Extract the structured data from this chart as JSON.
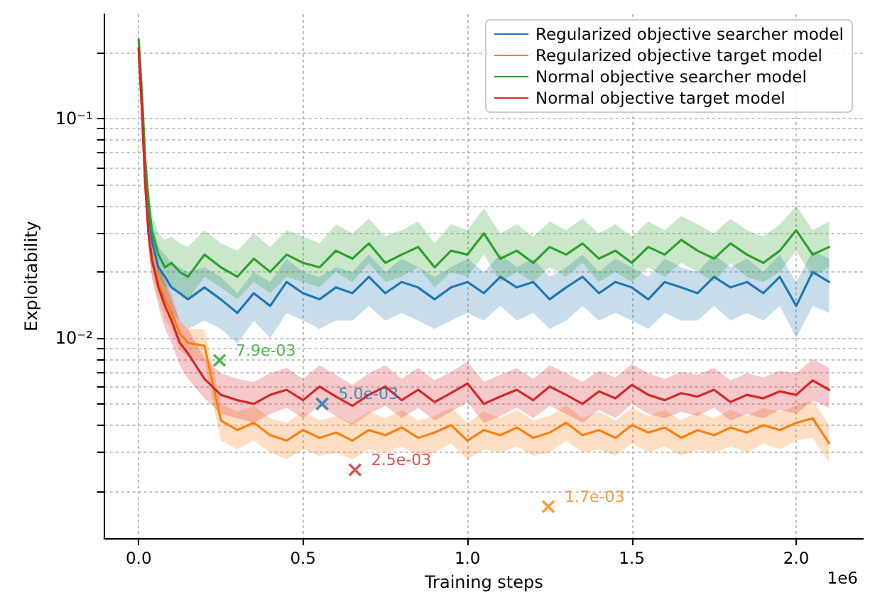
{
  "chart_data": {
    "type": "line",
    "xlabel": "Training steps",
    "ylabel": "Exploitability",
    "log": "y",
    "grid": true,
    "legend": "top right",
    "marker": "none",
    "line_style": "solid",
    "annotations": [
      "1e6"
    ],
    "xlim": [
      -0.105,
      2.205
    ],
    "xticks": [
      {
        "value": 0,
        "label": "0.0"
      },
      0.5,
      {
        "value": 1,
        "label": "1.0"
      },
      1.5,
      {
        "value": 2,
        "label": "2.0"
      }
    ],
    "ylim": [
      0.00122,
      0.3
    ],
    "yticks": [
      {
        "value": 0.002,
        "label": null
      },
      {
        "value": 0.003,
        "label": null
      },
      {
        "value": 0.004,
        "label": null
      },
      {
        "value": 0.005,
        "label": null
      },
      {
        "value": 0.006,
        "label": null
      },
      {
        "value": 0.007,
        "label": null
      },
      {
        "value": 0.008,
        "label": null
      },
      {
        "value": 0.009,
        "label": null
      },
      {
        "value": 0.01,
        "label": "10⁻²"
      },
      {
        "value": 0.02,
        "label": null
      },
      {
        "value": 0.03,
        "label": null
      },
      {
        "value": 0.04,
        "label": null
      },
      {
        "value": 0.05,
        "label": null
      },
      {
        "value": 0.06,
        "label": null
      },
      {
        "value": 0.07,
        "label": null
      },
      {
        "value": 0.08,
        "label": null
      },
      {
        "value": 0.09,
        "label": null
      },
      {
        "value": 0.1,
        "label": "10⁻¹"
      },
      {
        "value": 0.2,
        "label": null
      }
    ],
    "x": [
      0,
      0.01,
      0.02,
      0.03,
      0.04,
      0.06,
      0.08,
      0.1,
      0.125,
      0.15,
      0.2,
      0.25,
      0.3,
      0.35,
      0.4,
      0.45,
      0.5,
      0.55,
      0.6,
      0.65,
      0.7,
      0.75,
      0.8,
      0.85,
      0.9,
      0.95,
      1,
      1.05,
      1.1,
      1.15,
      1.2,
      1.25,
      1.3,
      1.35,
      1.4,
      1.45,
      1.5,
      1.55,
      1.6,
      1.65,
      1.7,
      1.75,
      1.8,
      1.85,
      1.9,
      1.95,
      2,
      2.05,
      2.1
    ],
    "series": [
      {
        "name": "Regularized objective searcher model",
        "color": "#1f77b4",
        "values": [
          null,
          null,
          0.06,
          0.038,
          0.028,
          0.021,
          0.019,
          0.017,
          0.016,
          0.015,
          0.017,
          0.015,
          0.013,
          0.016,
          0.014,
          0.018,
          0.016,
          0.015,
          0.017,
          0.016,
          0.019,
          0.016,
          0.018,
          0.017,
          0.015,
          0.017,
          0.018,
          0.016,
          0.019,
          0.017,
          0.018,
          0.015,
          0.017,
          0.019,
          0.016,
          0.018,
          0.017,
          0.015,
          0.018,
          0.017,
          0.016,
          0.019,
          0.017,
          0.018,
          0.016,
          0.019,
          0.014,
          0.02,
          0.018
        ],
        "lower": [
          0.19,
          0.1,
          0.05,
          0.032,
          0.023,
          0.017,
          0.015,
          0.013,
          0.012,
          0.011,
          0.012,
          0.011,
          0.0094,
          0.012,
          0.01,
          0.013,
          0.012,
          0.011,
          0.012,
          0.012,
          0.014,
          0.012,
          0.013,
          0.012,
          0.011,
          0.012,
          0.013,
          0.012,
          0.014,
          0.012,
          0.013,
          0.011,
          0.012,
          0.014,
          0.012,
          0.013,
          0.012,
          0.011,
          0.013,
          0.012,
          0.012,
          0.014,
          0.012,
          0.013,
          0.012,
          0.014,
          0.01,
          0.014,
          0.013
        ],
        "upper": [
          0.23,
          0.14,
          0.07,
          0.045,
          0.034,
          0.026,
          0.024,
          0.022,
          0.021,
          0.02,
          0.021,
          0.019,
          0.016,
          0.02,
          0.018,
          0.023,
          0.02,
          0.019,
          0.021,
          0.02,
          0.024,
          0.02,
          0.023,
          0.021,
          0.019,
          0.021,
          0.023,
          0.02,
          0.024,
          0.021,
          0.023,
          0.019,
          0.021,
          0.024,
          0.02,
          0.023,
          0.021,
          0.019,
          0.023,
          0.021,
          0.02,
          0.024,
          0.021,
          0.023,
          0.02,
          0.024,
          0.018,
          0.025,
          0.023
        ]
      },
      {
        "name": "Regularized objective target model",
        "color": "#ff7f0e",
        "values": [
          0.21,
          0.11,
          0.05,
          0.03,
          0.022,
          0.018,
          0.015,
          0.013,
          0.0105,
          0.0095,
          0.0092,
          0.0042,
          0.0038,
          0.0041,
          0.0036,
          0.0034,
          0.0038,
          0.0035,
          0.0037,
          0.0034,
          0.0038,
          0.0036,
          0.0039,
          0.0035,
          0.0037,
          0.004,
          0.0034,
          0.0038,
          0.0036,
          0.0039,
          0.0035,
          0.0037,
          0.0041,
          0.0036,
          0.0038,
          0.0035,
          0.004,
          0.0037,
          0.0039,
          0.0035,
          0.0038,
          0.0036,
          0.0039,
          0.0037,
          0.004,
          0.0038,
          0.0041,
          0.0043,
          0.0033
        ],
        "lower": [
          0.19,
          0.095,
          0.043,
          0.026,
          0.019,
          0.015,
          0.012,
          0.011,
          0.0088,
          0.0082,
          0.0078,
          0.0034,
          0.0031,
          0.0034,
          0.003,
          0.0028,
          0.0031,
          0.0029,
          0.003,
          0.0028,
          0.0031,
          0.003,
          0.0032,
          0.0029,
          0.003,
          0.0033,
          0.0028,
          0.0031,
          0.003,
          0.0032,
          0.0029,
          0.003,
          0.0034,
          0.003,
          0.0031,
          0.0029,
          0.0033,
          0.003,
          0.0032,
          0.0029,
          0.0031,
          0.003,
          0.0032,
          0.003,
          0.0033,
          0.0031,
          0.0034,
          0.0035,
          0.0027
        ],
        "upper": [
          0.23,
          0.13,
          0.06,
          0.036,
          0.027,
          0.022,
          0.018,
          0.016,
          0.012,
          0.011,
          0.011,
          0.005,
          0.0046,
          0.0049,
          0.0043,
          0.0041,
          0.0046,
          0.0042,
          0.0044,
          0.0041,
          0.0046,
          0.0043,
          0.0047,
          0.0042,
          0.0044,
          0.0048,
          0.0041,
          0.0046,
          0.0043,
          0.0047,
          0.0042,
          0.0044,
          0.0049,
          0.0043,
          0.0046,
          0.0042,
          0.0048,
          0.0044,
          0.0047,
          0.0042,
          0.0046,
          0.0043,
          0.0047,
          0.0044,
          0.0048,
          0.0046,
          0.0049,
          0.0052,
          0.004
        ]
      },
      {
        "name": "Normal objective searcher model",
        "color": "#2ca02c",
        "values": [
          0.23,
          0.13,
          0.065,
          0.042,
          0.031,
          0.024,
          0.021,
          0.022,
          0.02,
          0.019,
          0.024,
          0.021,
          0.019,
          0.023,
          0.02,
          0.024,
          0.022,
          0.021,
          0.025,
          0.023,
          0.027,
          0.022,
          0.024,
          0.026,
          0.021,
          0.025,
          0.024,
          0.03,
          0.023,
          0.025,
          0.022,
          0.026,
          0.024,
          0.027,
          0.023,
          0.025,
          0.022,
          0.026,
          0.024,
          0.028,
          0.025,
          0.023,
          0.027,
          0.024,
          0.022,
          0.025,
          0.031,
          0.024,
          0.026
        ],
        "lower": [
          0.21,
          0.11,
          0.055,
          0.036,
          0.026,
          0.019,
          0.017,
          0.017,
          0.016,
          0.015,
          0.019,
          0.017,
          0.015,
          0.018,
          0.016,
          0.019,
          0.018,
          0.017,
          0.02,
          0.018,
          0.022,
          0.018,
          0.019,
          0.021,
          0.017,
          0.02,
          0.019,
          0.024,
          0.018,
          0.02,
          0.018,
          0.021,
          0.019,
          0.022,
          0.018,
          0.02,
          0.018,
          0.021,
          0.019,
          0.022,
          0.02,
          0.018,
          0.022,
          0.019,
          0.018,
          0.02,
          0.025,
          0.019,
          0.021
        ],
        "upper": [
          0.25,
          0.15,
          0.075,
          0.05,
          0.037,
          0.03,
          0.028,
          0.029,
          0.027,
          0.026,
          0.031,
          0.027,
          0.025,
          0.03,
          0.026,
          0.031,
          0.029,
          0.027,
          0.033,
          0.03,
          0.035,
          0.029,
          0.031,
          0.034,
          0.027,
          0.033,
          0.031,
          0.039,
          0.03,
          0.033,
          0.029,
          0.034,
          0.031,
          0.035,
          0.03,
          0.033,
          0.029,
          0.034,
          0.031,
          0.036,
          0.033,
          0.03,
          0.035,
          0.031,
          0.029,
          0.033,
          0.04,
          0.031,
          0.034
        ]
      },
      {
        "name": "Normal objective target model",
        "color": "#d62728",
        "values": [
          0.21,
          0.11,
          0.05,
          0.03,
          0.023,
          0.017,
          0.014,
          0.012,
          0.0095,
          0.0085,
          0.0065,
          0.0055,
          0.0052,
          0.005,
          0.0055,
          0.0058,
          0.0052,
          0.006,
          0.0054,
          0.0049,
          0.0055,
          0.006,
          0.0052,
          0.0058,
          0.0051,
          0.0056,
          0.0062,
          0.005,
          0.0054,
          0.0058,
          0.0052,
          0.006,
          0.0055,
          0.005,
          0.0057,
          0.0053,
          0.0061,
          0.0055,
          0.0052,
          0.0056,
          0.0054,
          0.0058,
          0.0051,
          0.0055,
          0.0053,
          0.0057,
          0.0055,
          0.0064,
          0.0058
        ],
        "lower": [
          0.19,
          0.095,
          0.043,
          0.026,
          0.019,
          0.014,
          0.011,
          0.0095,
          0.0075,
          0.0065,
          0.0053,
          0.0045,
          0.0043,
          0.0041,
          0.0045,
          0.0048,
          0.0043,
          0.0049,
          0.0044,
          0.004,
          0.0045,
          0.0049,
          0.0043,
          0.0048,
          0.0042,
          0.0046,
          0.0051,
          0.0041,
          0.0044,
          0.0048,
          0.0043,
          0.0049,
          0.0045,
          0.0041,
          0.0047,
          0.0043,
          0.005,
          0.0045,
          0.0043,
          0.0046,
          0.0044,
          0.0048,
          0.0042,
          0.0045,
          0.0043,
          0.0047,
          0.0045,
          0.0052,
          0.0048
        ],
        "upper": [
          0.23,
          0.13,
          0.06,
          0.036,
          0.028,
          0.021,
          0.018,
          0.015,
          0.012,
          0.011,
          0.0081,
          0.0069,
          0.0065,
          0.0063,
          0.0069,
          0.0073,
          0.0065,
          0.0075,
          0.0068,
          0.0061,
          0.0069,
          0.0075,
          0.0065,
          0.0073,
          0.0064,
          0.007,
          0.0078,
          0.0063,
          0.0068,
          0.0073,
          0.0065,
          0.0075,
          0.0069,
          0.0063,
          0.0071,
          0.0066,
          0.0076,
          0.0069,
          0.0065,
          0.007,
          0.0068,
          0.0073,
          0.0064,
          0.0069,
          0.0066,
          0.0071,
          0.0069,
          0.008,
          0.0073
        ]
      },
      {
        "type": "scatter",
        "marker": "cross",
        "color": "#2ca02c",
        "x": [
          0.246
        ],
        "values": [
          0.0079
        ],
        "value_labels": [
          "7.9e-03"
        ]
      },
      {
        "type": "scatter",
        "marker": "cross",
        "color": "#1f77b4",
        "x": [
          0.558
        ],
        "values": [
          0.005
        ],
        "value_labels": [
          "5.0e-03"
        ]
      },
      {
        "type": "scatter",
        "marker": "cross",
        "color": "#d62728",
        "x": [
          0.658
        ],
        "values": [
          0.0025
        ],
        "value_labels": [
          "2.5e-03"
        ]
      },
      {
        "type": "scatter",
        "marker": "cross",
        "color": "#ff7f0e",
        "x": [
          1.246
        ],
        "values": [
          0.0017
        ],
        "value_labels": [
          "1.7e-03"
        ]
      }
    ]
  }
}
